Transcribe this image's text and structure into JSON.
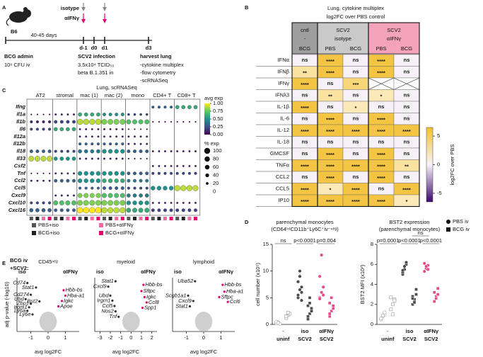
{
  "panel_labels": [
    "A",
    "B",
    "C",
    "D",
    "E"
  ],
  "panel_a": {
    "strain": "B6",
    "isotype": "isotype",
    "anti_ifng": "αIFNγ",
    "interval": "40-45 days",
    "days": [
      "d-1",
      "d0",
      "d1",
      "d3"
    ],
    "steps": [
      {
        "title": "BCG admin",
        "lines": [
          "10⁶ CFU iv"
        ]
      },
      {
        "title": "SCV2 infection",
        "lines": [
          "3.5x10⁴ TCID₅₀",
          "beta B.1.351 in"
        ]
      },
      {
        "title": "harvest lung",
        "lines": [
          "-cytokine multiplex",
          "-flow cytometry",
          "-scRNASeq"
        ]
      }
    ]
  },
  "panel_b": {
    "title": [
      "Lung, cytokine multiplex",
      "log2FC over PBS control"
    ],
    "groups": [
      {
        "label": [
          "cntl",
          "-"
        ],
        "span": 1,
        "color": "#9e9e9e"
      },
      {
        "label": [
          "SCV2",
          "isotype"
        ],
        "span": 2,
        "color": "#c9c9c9"
      },
      {
        "label": [
          "SCV2",
          "αIFNγ"
        ],
        "span": 2,
        "color": "#f4a3bb"
      }
    ],
    "columns": [
      "BCG",
      "PBS",
      "BCG",
      "PBS",
      "BCG"
    ],
    "rows": [
      {
        "name": "IFNα",
        "cells": [
          "ns",
          "****",
          "ns",
          "****",
          "ns"
        ]
      },
      {
        "name": "IFNβ",
        "cells": [
          "**",
          "****",
          "ns",
          "****",
          "ns"
        ]
      },
      {
        "name": "IFNγ",
        "cells": [
          "****",
          "ns",
          "***",
          null,
          null
        ]
      },
      {
        "name": "IFNλ3",
        "cells": [
          "ns",
          "**",
          "ns",
          "*",
          "ns"
        ]
      },
      {
        "name": "IL-1β",
        "cells": [
          "****",
          "ns",
          "*",
          "ns",
          "ns"
        ]
      },
      {
        "name": "IL-6",
        "cells": [
          "ns",
          "****",
          "ns",
          "****",
          "ns"
        ]
      },
      {
        "name": "IL-12",
        "cells": [
          "****",
          "****",
          "****",
          "****",
          "****"
        ]
      },
      {
        "name": "IL-18",
        "cells": [
          "ns",
          "ns",
          "ns",
          "ns",
          "ns"
        ]
      },
      {
        "name": "GMCSF",
        "cells": [
          "ns",
          "****",
          "ns",
          "****",
          "ns"
        ]
      },
      {
        "name": "TNFα",
        "cells": [
          "****",
          "****",
          "****",
          "****",
          "**"
        ]
      },
      {
        "name": "CCL2",
        "cells": [
          "ns",
          "****",
          "ns",
          "****",
          "ns"
        ]
      },
      {
        "name": "CCL5",
        "cells": [
          "****",
          "*",
          "****",
          "ns",
          "****"
        ]
      },
      {
        "name": "IP10",
        "cells": [
          "****",
          "****",
          "****",
          "****",
          "*"
        ]
      }
    ],
    "colorbar": {
      "label": "log2FC over PBS",
      "lim": [
        -6.5,
        6.5
      ],
      "ticks": [
        5,
        0,
        -5
      ]
    }
  },
  "panel_c": {
    "title": "Lung, scRNASeq",
    "groups": [
      "AT2",
      "stromal",
      "mac (1)",
      "mac (2)",
      "mono",
      "CD4+ T",
      "CD8+ T"
    ],
    "genes": [
      "Ifng",
      "Il1a",
      "Il1b",
      "Il6",
      "Il12a",
      "Il12b",
      "Il18",
      "Il33",
      "Csf2",
      "Tnf",
      "Ccl2",
      "Ccl5",
      "Cxcl9",
      "Cxcl10",
      "Cxcl16"
    ],
    "avg_exp": [
      [
        0,
        0,
        0,
        0,
        0,
        0.3,
        0.6
      ],
      [
        0,
        0.1,
        0.6,
        0.5,
        0.2,
        0,
        0
      ],
      [
        0.1,
        0.2,
        0.9,
        0.8,
        0.7,
        0,
        0
      ],
      [
        0.2,
        0.6,
        0.1,
        0.1,
        0,
        0,
        0
      ],
      [
        0,
        0,
        0.1,
        0.1,
        0.1,
        0,
        0
      ],
      [
        0,
        0,
        0.3,
        0.3,
        0.1,
        0,
        0
      ],
      [
        0.3,
        0.2,
        0.4,
        0.5,
        0.3,
        0.1,
        0.1
      ],
      [
        0.9,
        0.5,
        0.1,
        0.1,
        0,
        0,
        0
      ],
      [
        0,
        0,
        0,
        0,
        0,
        0.1,
        0.1
      ],
      [
        0,
        0.1,
        0.5,
        0.5,
        0.3,
        0.2,
        0.2
      ],
      [
        0.1,
        0.3,
        0.5,
        0.6,
        0.4,
        0,
        0
      ],
      [
        0,
        0,
        0.3,
        0.3,
        0.2,
        0.5,
        0.9
      ],
      [
        0,
        0.1,
        0.8,
        0.7,
        0.4,
        0,
        0
      ],
      [
        0.2,
        0.7,
        0.8,
        0.8,
        0.5,
        0.1,
        0.1
      ],
      [
        0.3,
        0.3,
        1.0,
        0.9,
        0.6,
        0.2,
        0.2
      ]
    ],
    "pct_exp": [
      [
        0,
        0,
        0,
        0,
        0,
        20,
        40
      ],
      [
        5,
        10,
        40,
        30,
        15,
        0,
        0
      ],
      [
        20,
        30,
        90,
        80,
        60,
        5,
        5
      ],
      [
        20,
        40,
        10,
        10,
        5,
        0,
        0
      ],
      [
        0,
        0,
        10,
        10,
        10,
        0,
        0
      ],
      [
        0,
        0,
        20,
        20,
        10,
        0,
        0
      ],
      [
        30,
        20,
        40,
        50,
        30,
        10,
        10
      ],
      [
        80,
        40,
        10,
        10,
        5,
        0,
        0
      ],
      [
        0,
        0,
        0,
        0,
        0,
        10,
        10
      ],
      [
        5,
        10,
        50,
        50,
        30,
        20,
        20
      ],
      [
        10,
        30,
        50,
        50,
        30,
        0,
        0
      ],
      [
        0,
        0,
        20,
        30,
        20,
        50,
        90
      ],
      [
        0,
        10,
        60,
        60,
        40,
        0,
        0
      ],
      [
        20,
        60,
        80,
        80,
        50,
        10,
        10
      ],
      [
        40,
        30,
        100,
        90,
        60,
        30,
        30
      ]
    ],
    "avg_legend": {
      "title": "avg exp",
      "ticks": [
        {
          "value": 1,
          "label": "1.00"
        },
        {
          "value": 0.75,
          "label": "0.75"
        },
        {
          "value": 0.5,
          "label": "0.50"
        },
        {
          "value": 0.25,
          "label": "0.25"
        },
        {
          "value": 0,
          "label": "0.00"
        }
      ]
    },
    "pct_legend": {
      "title": "% exp",
      "ticks": [
        100,
        80,
        60,
        40,
        20,
        0
      ]
    },
    "conditions": [
      {
        "name": "PBS+iso",
        "color": "#555555"
      },
      {
        "name": "BCG+iso",
        "color": "#222222"
      },
      {
        "name": "PBS+αIFNγ",
        "color": "#f06ca0"
      },
      {
        "name": "BCG+αIFNγ",
        "color": "#e3006e"
      }
    ]
  },
  "panel_d": {
    "legend": [
      {
        "name": "PBS iv",
        "marker": "circle"
      },
      {
        "name": "BCG iv",
        "marker": "square"
      }
    ],
    "plots": [
      {
        "title": "parenchymal monocytes",
        "subtitle": "(CD64ⁱⁿᵗCD11b⁺Ly6C⁺iv⁻ⁿᵉᵍ)",
        "ylabel": "cell number (x10⁵)",
        "ylim": [
          0,
          15
        ],
        "yticks": [
          0,
          5,
          10,
          15
        ],
        "annotations": [
          "ns",
          "p<0.0001",
          "p=0.004"
        ],
        "categories": [
          {
            "label": [
              "-",
              "uninf"
            ],
            "color": "#ffffff"
          },
          {
            "label": [
              "iso",
              "SCV2"
            ],
            "color": "#4a4a4a"
          },
          {
            "label": [
              "αIFNγ",
              "SCV2"
            ],
            "color": "#e8498a"
          }
        ],
        "values": [
          [
            [
              0.2,
              0.4,
              0.1,
              0.5,
              0.3
            ],
            [
              5,
              6.5,
              7,
              8,
              9,
              6,
              5.5,
              10,
              4.5
            ],
            [
              5,
              6,
              7,
              9,
              13,
              5.5,
              4.8
            ]
          ],
          [
            [
              1.2,
              1.8,
              2.0,
              1.5,
              2.2
            ],
            [
              1,
              2,
              3,
              3.5,
              4,
              2.5,
              1.5,
              5
            ],
            [
              1.5,
              2.5,
              3,
              4,
              5,
              3.5,
              2
            ]
          ]
        ]
      },
      {
        "title": "BST2 expression",
        "subtitle": "(parenchymal monocytes)",
        "ylabel": "BST2 MFI (x10³)",
        "ylim": [
          0,
          8
        ],
        "yticks": [
          0,
          2,
          4,
          6,
          8
        ],
        "annotations": [
          "ns",
          "p=0.0001",
          "p<0.0001",
          "p<0.0001"
        ],
        "categories": [
          {
            "label": [
              "-",
              "uninf"
            ],
            "color": "#ffffff"
          },
          {
            "label": [
              "iso",
              "SCV2"
            ],
            "color": "#4a4a4a"
          },
          {
            "label": [
              "αIFNγ",
              "SCV2"
            ],
            "color": "#e8498a"
          }
        ],
        "values": [
          [
            [
              0.5,
              0.8,
              1.0,
              0.6,
              0.9,
              1.2
            ],
            [
              5,
              5.5,
              6,
              5.2,
              5.8,
              6.2,
              5.4
            ],
            [
              5.3,
              5.6,
              5.9,
              6.1,
              5.8,
              5.5
            ]
          ],
          [
            [
              1.5,
              2.0,
              2.5,
              2.7,
              1.0,
              2.4
            ],
            [
              2,
              2.5,
              3,
              2.8,
              2.2,
              3.5,
              2.6
            ],
            [
              2.3,
              2.8,
              3.0,
              3.2,
              2.6,
              3.6
            ]
          ]
        ]
      }
    ]
  },
  "panel_e": {
    "header": [
      "BCG iv",
      "+SCV2:"
    ],
    "side_labels": [
      "iso",
      "αIFNγ"
    ],
    "ylabel": "adj p-value (-log10)",
    "xlabel": "avg log2FC",
    "ylim": [
      0,
      300
    ],
    "plots": [
      {
        "title": "CD45ⁿᵉᵍ",
        "xlim": [
          -1.8,
          1.8
        ],
        "xticks": [
          -1,
          0,
          1
        ],
        "genes": [
          {
            "label": "Cd74",
            "x": -1.2,
            "y": 270,
            "color": "#333333"
          },
          {
            "label": "Stat1",
            "x": -0.7,
            "y": 245,
            "color": "#333333"
          },
          {
            "label": "Cd274",
            "x": -1.0,
            "y": 205,
            "color": "#333333"
          },
          {
            "label": "Ubd",
            "x": -1.3,
            "y": 180,
            "color": "#333333"
          },
          {
            "label": "Bst2",
            "x": -0.5,
            "y": 168,
            "color": "#333333"
          },
          {
            "label": "Zbp1",
            "x": -1.0,
            "y": 155,
            "color": "#333333"
          },
          {
            "label": "Irgm1",
            "x": -1.1,
            "y": 135,
            "color": "#333333"
          },
          {
            "label": "Ly6a",
            "x": -1.2,
            "y": 115,
            "color": "#333333"
          },
          {
            "label": "Ly6e",
            "x": -0.9,
            "y": 95,
            "color": "#333333"
          },
          {
            "label": "Hbb-bs",
            "x": 0.9,
            "y": 230,
            "color": "#e3006e"
          },
          {
            "label": "Hba-a1",
            "x": 1.0,
            "y": 200,
            "color": "#e3006e"
          },
          {
            "label": "Igkc",
            "x": 0.8,
            "y": 170,
            "color": "#e3006e"
          },
          {
            "label": "Apoe",
            "x": 0.6,
            "y": 140,
            "color": "#e3006e"
          }
        ]
      },
      {
        "title": "myeloid",
        "xlim": [
          -3.5,
          2.5
        ],
        "xticks": [
          -3,
          -2,
          -1,
          0,
          1,
          2
        ],
        "genes": [
          {
            "label": "Stat1",
            "x": -1.5,
            "y": 280,
            "color": "#333333"
          },
          {
            "label": "Cxcl9",
            "x": -2.2,
            "y": 250,
            "color": "#333333"
          },
          {
            "label": "Ubd",
            "x": -2.0,
            "y": 200,
            "color": "#333333"
          },
          {
            "label": "Irgm1",
            "x": -1.8,
            "y": 172,
            "color": "#333333"
          },
          {
            "label": "Ccl5",
            "x": -1.6,
            "y": 142,
            "color": "#333333"
          },
          {
            "label": "Nos2",
            "x": -1.5,
            "y": 112,
            "color": "#333333"
          },
          {
            "label": "Tnf",
            "x": -1.2,
            "y": 82,
            "color": "#333333"
          },
          {
            "label": "Hbb-bs",
            "x": 1.2,
            "y": 260,
            "color": "#e3006e"
          },
          {
            "label": "Sftpc",
            "x": 1.0,
            "y": 225,
            "color": "#e3006e"
          },
          {
            "label": "Igkc",
            "x": 1.3,
            "y": 192,
            "color": "#e3006e"
          },
          {
            "label": "Ccl8",
            "x": 1.5,
            "y": 162,
            "color": "#e3006e"
          },
          {
            "label": "Spp1",
            "x": 1.1,
            "y": 132,
            "color": "#e3006e"
          }
        ]
      },
      {
        "title": "lymphoid",
        "xlim": [
          -1.8,
          1.8
        ],
        "xticks": [
          -1,
          0,
          1
        ],
        "genes": [
          {
            "label": "Uba52",
            "x": -0.5,
            "y": 280,
            "color": "#333333"
          },
          {
            "label": "Scgb1a1",
            "x": -0.9,
            "y": 200,
            "color": "#333333"
          },
          {
            "label": "Cxcl9",
            "x": -0.6,
            "y": 170,
            "color": "#333333"
          },
          {
            "label": "Stat1",
            "x": -0.8,
            "y": 140,
            "color": "#333333"
          },
          {
            "label": "Hbb-bs",
            "x": 1.1,
            "y": 260,
            "color": "#e3006e"
          },
          {
            "label": "Hba-a1",
            "x": 1.2,
            "y": 222,
            "color": "#e3006e"
          },
          {
            "label": "Sftpc",
            "x": 0.9,
            "y": 192,
            "color": "#e3006e"
          },
          {
            "label": "Ccl6",
            "x": 1.4,
            "y": 165,
            "color": "#e3006e"
          }
        ]
      }
    ]
  }
}
